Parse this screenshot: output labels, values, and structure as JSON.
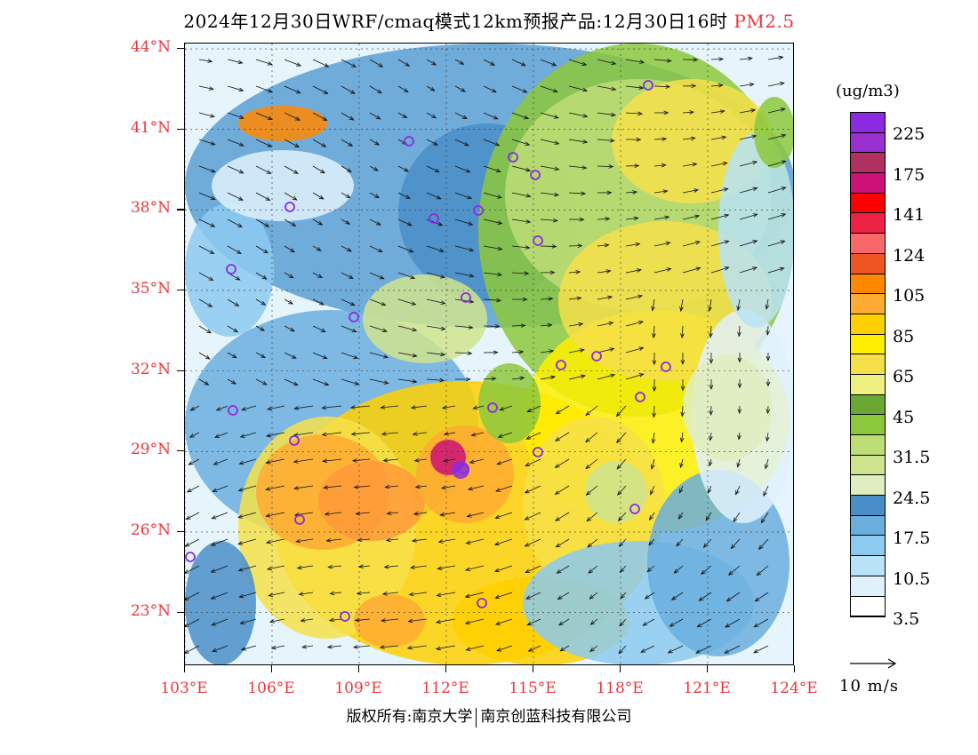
{
  "title": {
    "main": "2024年12月30日WRF/cmaq模式12km预报产品:12月30日16时",
    "species": "PM2.5"
  },
  "map": {
    "lat_labels": [
      "44°N",
      "41°N",
      "38°N",
      "35°N",
      "32°N",
      "29°N",
      "26°N",
      "23°N"
    ],
    "lon_labels": [
      "103°E",
      "106°E",
      "109°E",
      "112°E",
      "115°E",
      "118°E",
      "121°E",
      "124°E"
    ],
    "extent": {
      "lon_min": 103,
      "lon_max": 124,
      "lat_min": 21.0,
      "lat_max": 44.2
    },
    "city_marker_color": "#8a2be2"
  },
  "legend": {
    "units": "(ug/m3)",
    "colors": [
      "#8a2be2",
      "#9b30d0",
      "#b03060",
      "#cc1177",
      "#ff0000",
      "#ee2244",
      "#f86868",
      "#ee5522",
      "#ff8800",
      "#ffaa33",
      "#ffd000",
      "#ffee00",
      "#f6e04a",
      "#eef080",
      "#6aa832",
      "#8cc83c",
      "#bedd76",
      "#cfe48e",
      "#e0edc0",
      "#4a8ec8",
      "#6aaede",
      "#8ccaf0",
      "#b8e2f6",
      "#dff1fb",
      "#ffffff"
    ],
    "labels": [
      "225",
      "175",
      "141",
      "124",
      "105",
      "85",
      "65",
      "45",
      "31.5",
      "24.5",
      "17.5",
      "10.5",
      "3.5"
    ]
  },
  "wind_vector": {
    "label": "10 m/s"
  },
  "footer": {
    "left": "版权所有:南京大学",
    "right": "南京创蓝科技有限公司"
  }
}
